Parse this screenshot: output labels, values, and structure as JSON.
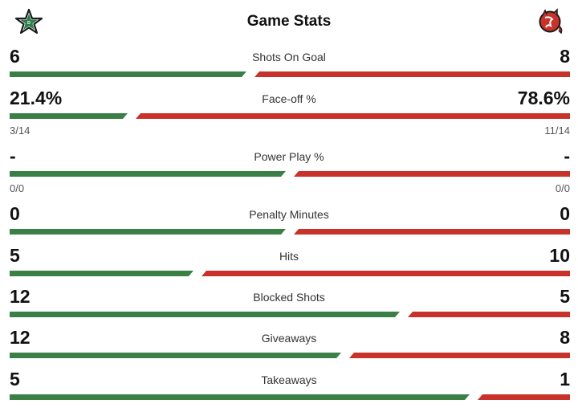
{
  "header": {
    "title": "Game Stats",
    "home_logo_icon": "dallas-stars-star-icon",
    "away_logo_icon": "new-jersey-devils-icon"
  },
  "colors": {
    "home": "#3a7f46",
    "away": "#c8322b"
  },
  "stats": [
    {
      "label": "Shots On Goal",
      "home": "6",
      "away": "8",
      "home_share": 0.4286
    },
    {
      "label": "Face-off %",
      "home": "21.4%",
      "away": "78.6%",
      "home_share": 0.214,
      "home_sub": "3/14",
      "away_sub": "11/14"
    },
    {
      "label": "Power Play %",
      "home": "-",
      "away": "-",
      "home_share": 0.5,
      "home_sub": "0/0",
      "away_sub": "0/0"
    },
    {
      "label": "Penalty Minutes",
      "home": "0",
      "away": "0",
      "home_share": 0.5
    },
    {
      "label": "Hits",
      "home": "5",
      "away": "10",
      "home_share": 0.3333
    },
    {
      "label": "Blocked Shots",
      "home": "12",
      "away": "5",
      "home_share": 0.7059
    },
    {
      "label": "Giveaways",
      "home": "12",
      "away": "8",
      "home_share": 0.6
    },
    {
      "label": "Takeaways",
      "home": "5",
      "away": "1",
      "home_share": 0.8333
    }
  ]
}
